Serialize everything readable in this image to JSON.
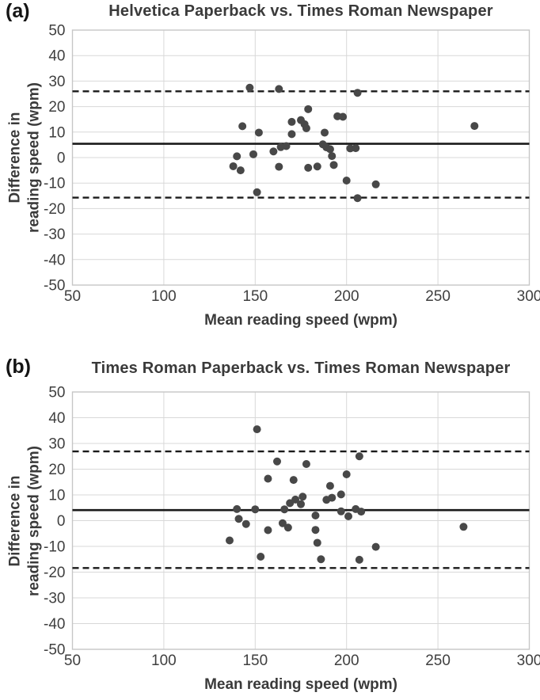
{
  "colors": {
    "point": "#484848",
    "grid": "#d8d8d8",
    "plot_border": "#c6c6c6",
    "line": "#1a1a1a",
    "tick_text": "#3f3f3f",
    "title_text": "#3a3a3a"
  },
  "chart_data": [
    {
      "type": "scatter",
      "panel_label": "(a)",
      "title": "Helvetica Paperback vs. Times Roman Newspaper",
      "xlabel": "Mean reading speed (wpm)",
      "ylabel": "Difference in reading speed (wpm)",
      "ylabel_lines": [
        "Difference in",
        "reading speed (wpm)"
      ],
      "xlim": [
        50,
        300
      ],
      "ylim": [
        -50,
        50
      ],
      "xticks": [
        50,
        100,
        150,
        200,
        250,
        300
      ],
      "yticks": [
        50,
        40,
        30,
        20,
        10,
        0,
        -10,
        -20,
        -30,
        -40,
        -50
      ],
      "grid": true,
      "legend": "none",
      "mean_diff": 5.4,
      "upper_limit": 26.0,
      "lower_limit": -15.7,
      "points": [
        [
          147,
          27.4
        ],
        [
          163,
          26.9
        ],
        [
          206,
          25.4
        ],
        [
          179,
          19.0
        ],
        [
          195,
          16.2
        ],
        [
          198,
          16.0
        ],
        [
          170,
          14.0
        ],
        [
          175,
          14.7
        ],
        [
          177,
          13.1
        ],
        [
          178,
          11.5
        ],
        [
          143,
          12.3
        ],
        [
          270,
          12.4
        ],
        [
          152,
          9.8
        ],
        [
          170,
          9.2
        ],
        [
          188,
          9.8
        ],
        [
          187,
          5.2
        ],
        [
          167,
          4.5
        ],
        [
          164,
          4.1
        ],
        [
          160,
          2.4
        ],
        [
          149,
          1.3
        ],
        [
          140,
          0.5
        ],
        [
          189,
          4.0
        ],
        [
          191,
          3.3
        ],
        [
          192,
          0.6
        ],
        [
          202,
          3.6
        ],
        [
          205,
          3.7
        ],
        [
          138,
          -3.4
        ],
        [
          142,
          -5.0
        ],
        [
          163,
          -3.6
        ],
        [
          179,
          -4.0
        ],
        [
          184,
          -3.5
        ],
        [
          193,
          -2.9
        ],
        [
          200,
          -9.0
        ],
        [
          216,
          -10.5
        ],
        [
          151,
          -13.6
        ],
        [
          206,
          -15.9
        ]
      ]
    },
    {
      "type": "scatter",
      "panel_label": "(b)",
      "title": "Times Roman Paperback vs. Times Roman Newspaper",
      "xlabel": "Mean reading speed (wpm)",
      "ylabel": "Difference in reading speed (wpm)",
      "ylabel_lines": [
        "Difference in",
        "reading speed (wpm)"
      ],
      "xlim": [
        50,
        300
      ],
      "ylim": [
        -50,
        50
      ],
      "xticks": [
        50,
        100,
        150,
        200,
        250,
        300
      ],
      "yticks": [
        50,
        40,
        30,
        20,
        10,
        0,
        -10,
        -20,
        -30,
        -40,
        -50
      ],
      "grid": true,
      "legend": "none",
      "mean_diff": 4.1,
      "upper_limit": 26.9,
      "lower_limit": -18.4,
      "points": [
        [
          151,
          35.5
        ],
        [
          207,
          25.0
        ],
        [
          162,
          23.0
        ],
        [
          178,
          22.0
        ],
        [
          200,
          18.0
        ],
        [
          157,
          16.3
        ],
        [
          171,
          15.8
        ],
        [
          191,
          13.5
        ],
        [
          197,
          10.2
        ],
        [
          176,
          9.3
        ],
        [
          192,
          8.9
        ],
        [
          189,
          8.1
        ],
        [
          172,
          8.2
        ],
        [
          169,
          6.8
        ],
        [
          175,
          6.4
        ],
        [
          166,
          4.4
        ],
        [
          140,
          4.5
        ],
        [
          150,
          4.4
        ],
        [
          205,
          4.5
        ],
        [
          208,
          3.5
        ],
        [
          197,
          3.6
        ],
        [
          183,
          2.0
        ],
        [
          201,
          1.7
        ],
        [
          141,
          0.7
        ],
        [
          165,
          -1.0
        ],
        [
          145,
          -1.3
        ],
        [
          168,
          -2.7
        ],
        [
          264,
          -2.4
        ],
        [
          157,
          -3.7
        ],
        [
          183,
          -3.6
        ],
        [
          136,
          -7.7
        ],
        [
          184,
          -8.6
        ],
        [
          216,
          -10.2
        ],
        [
          153,
          -14.0
        ],
        [
          186,
          -15.0
        ],
        [
          207,
          -15.2
        ]
      ]
    }
  ]
}
